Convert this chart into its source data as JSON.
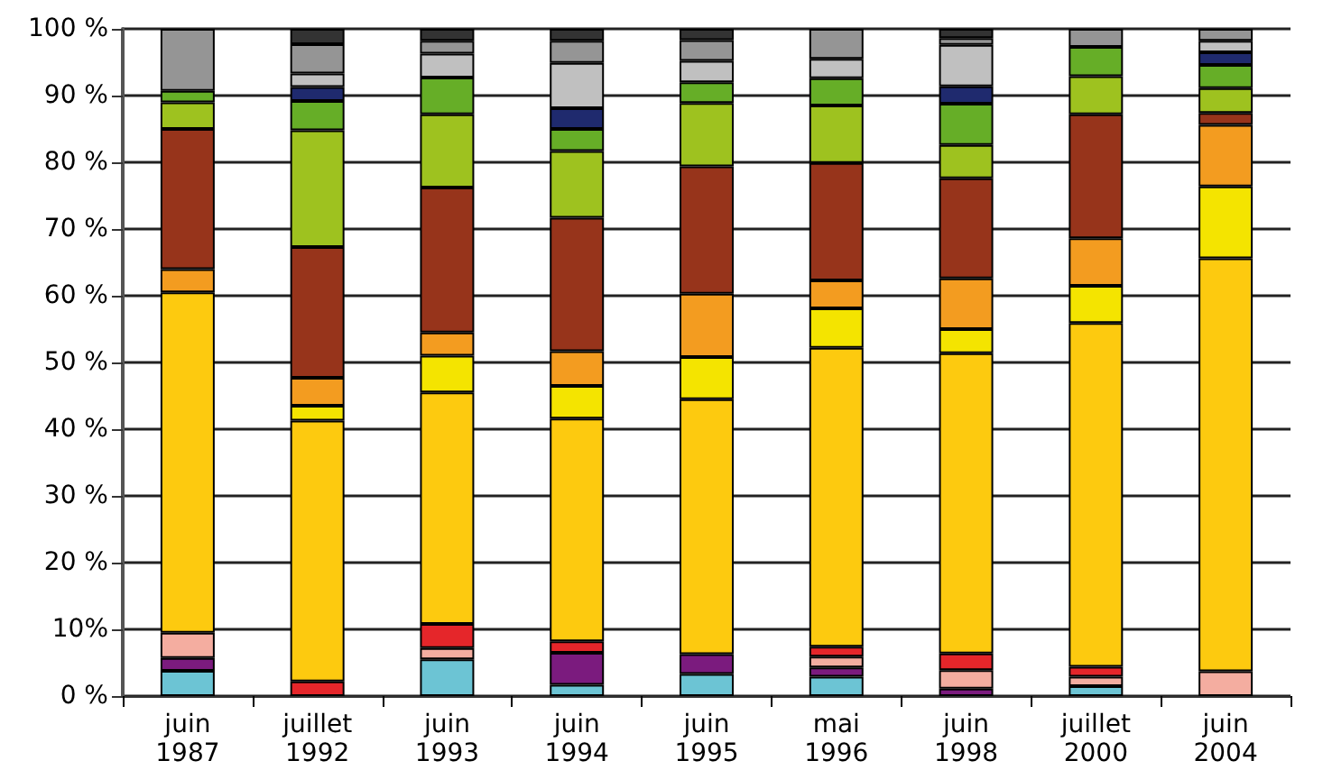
{
  "chart_data": {
    "type": "bar",
    "stacked": true,
    "categories": [
      "juin 1987",
      "juillet 1992",
      "juin 1993",
      "juin 1994",
      "juin 1995",
      "mai 1996",
      "juin 1998",
      "juillet 2000",
      "juin 2004"
    ],
    "ylim": [
      0,
      100
    ],
    "yticks": [
      {
        "value": 0,
        "label": "0 %"
      },
      {
        "value": 10,
        "label": "10%"
      },
      {
        "value": 20,
        "label": "20 %"
      },
      {
        "value": 30,
        "label": "30 %"
      },
      {
        "value": 40,
        "label": "40 %"
      },
      {
        "value": 50,
        "label": "50 %"
      },
      {
        "value": 60,
        "label": "60 %"
      },
      {
        "value": 70,
        "label": "70 %"
      },
      {
        "value": 80,
        "label": "80 %"
      },
      {
        "value": 90,
        "label": "90 %"
      },
      {
        "value": 100,
        "label": "100 %"
      }
    ],
    "grid": "y",
    "series": [
      {
        "color": "#6cc4d4",
        "values": [
          3.8,
          null,
          5.5,
          1.7,
          3.3,
          2.9,
          null,
          1.5,
          null
        ]
      },
      {
        "color": "#7b1b7e",
        "values": [
          1.9,
          null,
          null,
          4.8,
          3.0,
          1.4,
          1.1,
          null,
          null
        ]
      },
      {
        "color": "#f4ada0",
        "values": [
          3.8,
          null,
          1.7,
          null,
          null,
          1.6,
          2.8,
          1.4,
          3.7
        ]
      },
      {
        "color": "#e5262a",
        "values": [
          null,
          2.2,
          3.6,
          1.7,
          null,
          1.5,
          2.5,
          1.5,
          null
        ]
      },
      {
        "color": "#fdca0f",
        "values": [
          51.0,
          39.1,
          34.7,
          33.4,
          38.2,
          44.8,
          45.0,
          51.5,
          61.9
        ]
      },
      {
        "color": "#f4e400",
        "values": [
          null,
          2.2,
          5.5,
          4.9,
          6.3,
          5.9,
          3.6,
          5.6,
          10.8
        ]
      },
      {
        "color": "#f39c20",
        "values": [
          3.5,
          4.2,
          3.5,
          5.2,
          9.5,
          4.2,
          7.6,
          7.1,
          9.2
        ]
      },
      {
        "color": "#97341b",
        "values": [
          21.0,
          19.6,
          21.7,
          20.0,
          19.1,
          17.6,
          15.0,
          18.6,
          1.8
        ]
      },
      {
        "color": "#9ec21f",
        "values": [
          4.0,
          17.5,
          11.0,
          10.0,
          9.5,
          8.6,
          5.0,
          5.7,
          3.7
        ]
      },
      {
        "color": "#66ae27",
        "values": [
          1.7,
          4.4,
          5.5,
          3.3,
          3.1,
          4.1,
          6.2,
          4.4,
          3.5
        ]
      },
      {
        "color": "#1f2a6e",
        "values": [
          null,
          2.1,
          null,
          3.1,
          null,
          null,
          2.6,
          null,
          1.9
        ]
      },
      {
        "color": "#c0c0c0",
        "values": [
          null,
          2.0,
          3.6,
          6.8,
          3.2,
          2.9,
          6.2,
          null,
          1.7
        ]
      },
      {
        "color": "#959595",
        "values": [
          9.3,
          4.4,
          1.9,
          3.3,
          3.1,
          4.5,
          1.0,
          2.7,
          1.8
        ]
      },
      {
        "color": "#333333",
        "values": [
          null,
          2.3,
          1.8,
          1.8,
          1.7,
          null,
          1.4,
          null,
          null
        ]
      }
    ]
  }
}
